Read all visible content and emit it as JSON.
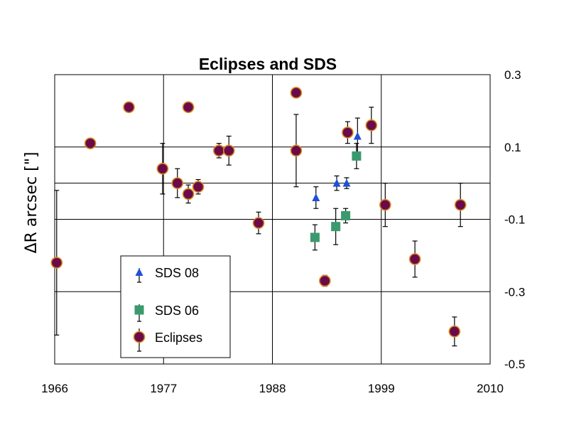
{
  "chart_data": {
    "type": "scatter",
    "title": "Eclipses and SDS",
    "xlabel": "",
    "ylabel": "ΔR arcsec [\"]",
    "xlim": [
      1966,
      2010
    ],
    "ylim": [
      -0.5,
      0.3
    ],
    "x_ticks": [
      1966,
      1977,
      1988,
      1999,
      2010
    ],
    "x_tick_labels": [
      "1966",
      "1977",
      "1988",
      "1999",
      "2010"
    ],
    "y_ticks": [
      0.3,
      0.1,
      -0.1,
      -0.3,
      -0.5
    ],
    "y_tick_labels": [
      "0.3",
      "0.1",
      "-0.1",
      "-0.3",
      "-0.5"
    ],
    "y_axis_side": "right",
    "y_gridlines": [
      0.1,
      0.0,
      -0.1,
      -0.3
    ],
    "x_gridlines": [
      1977,
      1988,
      1999
    ],
    "legend_position": "bottom-left",
    "series": [
      {
        "name": "SDS 08",
        "marker": "triangle",
        "color": "#1f4fd8",
        "points": [
          {
            "x": 1992.4,
            "y": -0.04,
            "err": 0.03
          },
          {
            "x": 1994.5,
            "y": 0.0,
            "err": 0.02
          },
          {
            "x": 1995.5,
            "y": 0.0,
            "err": 0.015
          },
          {
            "x": 1996.6,
            "y": 0.13,
            "err": 0.05
          }
        ]
      },
      {
        "name": "SDS 06",
        "marker": "square",
        "color": "#3a9a6e",
        "points": [
          {
            "x": 1992.3,
            "y": -0.15,
            "err": 0.035
          },
          {
            "x": 1994.4,
            "y": -0.12,
            "err": 0.05
          },
          {
            "x": 1995.4,
            "y": -0.09,
            "err": 0.02
          },
          {
            "x": 1996.5,
            "y": 0.075,
            "err": 0.035
          }
        ]
      },
      {
        "name": "Eclipses",
        "marker": "circle",
        "color": "#6b0a4a",
        "edge": "#d98c1e",
        "points": [
          {
            "x": 1966.2,
            "y": -0.22,
            "err": 0.2
          },
          {
            "x": 1969.6,
            "y": 0.11,
            "err": 0
          },
          {
            "x": 1973.5,
            "y": 0.21,
            "err": 0
          },
          {
            "x": 1976.9,
            "y": 0.04,
            "err": 0.07
          },
          {
            "x": 1978.4,
            "y": 0.0,
            "err": 0.04
          },
          {
            "x": 1979.5,
            "y": 0.21,
            "err": 0
          },
          {
            "x": 1979.5,
            "y": -0.03,
            "err": 0.025
          },
          {
            "x": 1980.5,
            "y": -0.01,
            "err": 0.02
          },
          {
            "x": 1982.6,
            "y": 0.09,
            "err": 0.02
          },
          {
            "x": 1983.6,
            "y": 0.09,
            "err": 0.04
          },
          {
            "x": 1986.6,
            "y": -0.11,
            "err": 0.03
          },
          {
            "x": 1990.4,
            "y": 0.25,
            "err": 0
          },
          {
            "x": 1990.4,
            "y": 0.09,
            "err": 0.1
          },
          {
            "x": 1993.3,
            "y": -0.27,
            "err": 0.015
          },
          {
            "x": 1995.6,
            "y": 0.14,
            "err": 0.03
          },
          {
            "x": 1998.0,
            "y": 0.16,
            "err": 0.05
          },
          {
            "x": 1999.4,
            "y": -0.06,
            "err": 0.06
          },
          {
            "x": 2002.4,
            "y": -0.21,
            "err": 0.05
          },
          {
            "x": 2006.4,
            "y": -0.41,
            "err": 0.04
          },
          {
            "x": 2007.0,
            "y": -0.06,
            "err": 0.06
          }
        ]
      }
    ]
  }
}
